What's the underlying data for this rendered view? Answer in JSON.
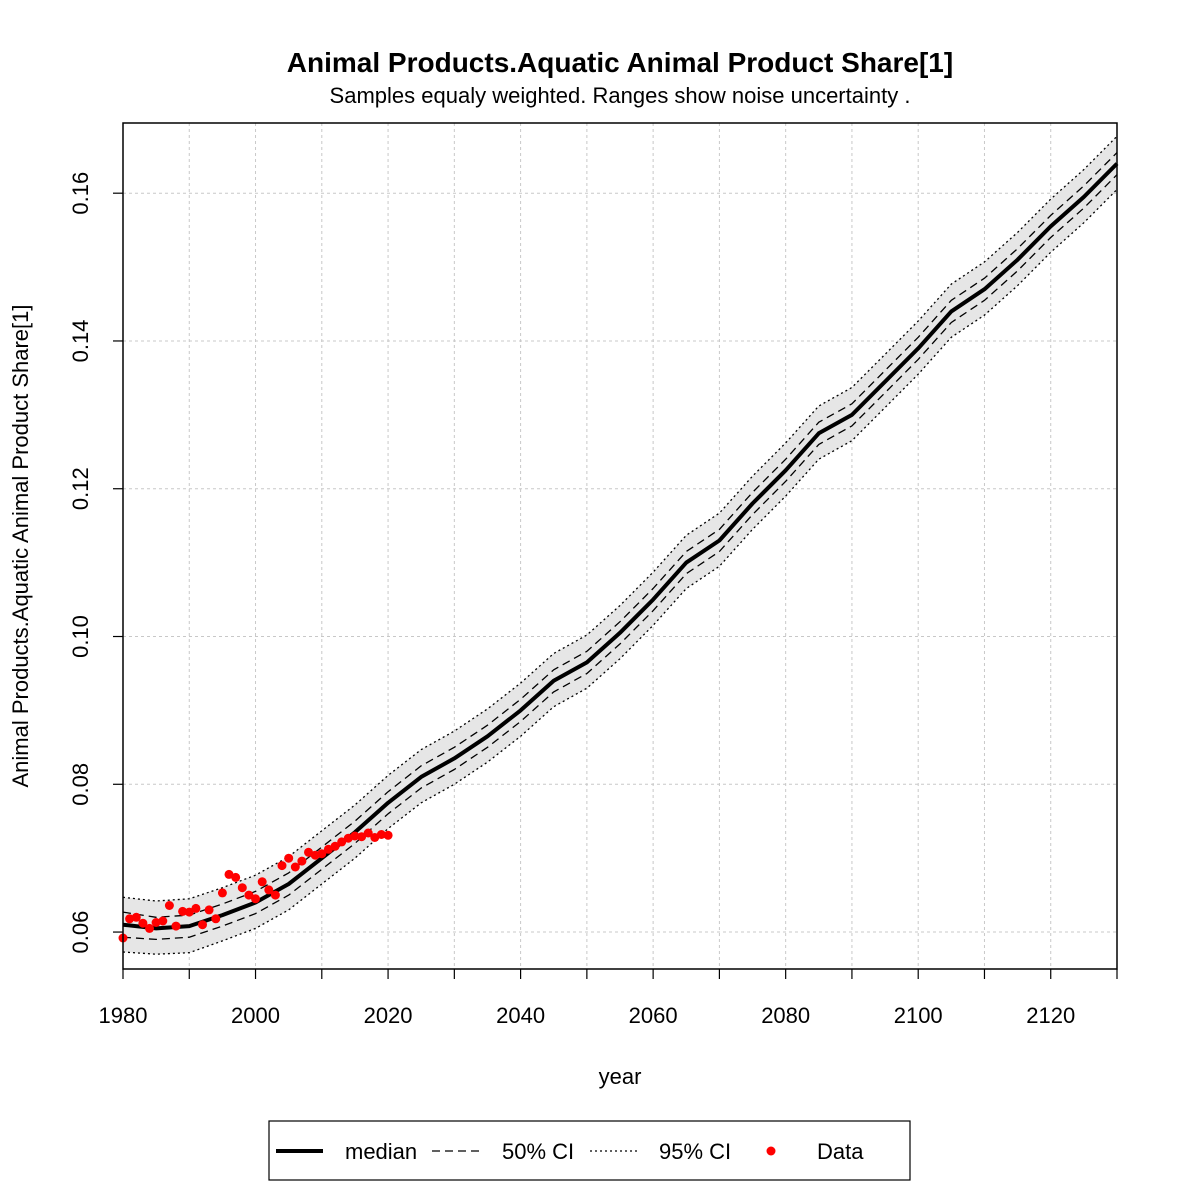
{
  "chart_data": {
    "type": "line",
    "title": "Animal Products.Aquatic Animal Product Share[1]",
    "subtitle": "Samples equaly weighted. Ranges show  noise uncertainty .",
    "xlabel": "year",
    "ylabel": "Animal Products.Aquatic Animal Product Share[1]",
    "xlim": [
      1980,
      2130
    ],
    "ylim": [
      0.055,
      0.1695
    ],
    "x_ticks": [
      1980,
      2000,
      2020,
      2040,
      2060,
      2080,
      2100,
      2120
    ],
    "x_tick_labels": [
      "1980",
      "2000",
      "2020",
      "2040",
      "2060",
      "2080",
      "2100",
      "2120"
    ],
    "x_minor_ticks": [
      1990,
      2010,
      2030,
      2050,
      2070,
      2090,
      2110,
      2130
    ],
    "y_ticks": [
      0.06,
      0.08,
      0.1,
      0.12,
      0.14,
      0.16
    ],
    "y_tick_labels": [
      "0.06",
      "0.08",
      "0.10",
      "0.12",
      "0.14",
      "0.16"
    ],
    "grid": true,
    "legend": {
      "placement": "bottom",
      "entries": [
        {
          "label": "median",
          "style": "solid"
        },
        {
          "label": "50% CI",
          "style": "dashed"
        },
        {
          "label": "95% CI",
          "style": "dotted"
        },
        {
          "label": "Data",
          "style": "point"
        }
      ]
    },
    "colors": {
      "median": "#000000",
      "band": "#e6e6e6",
      "data": "#ff0000",
      "grid": "#c8c8c8"
    },
    "x": [
      1980,
      1985,
      1990,
      1995,
      2000,
      2005,
      2010,
      2015,
      2020,
      2025,
      2030,
      2035,
      2040,
      2045,
      2050,
      2055,
      2060,
      2065,
      2070,
      2075,
      2080,
      2085,
      2090,
      2095,
      2100,
      2105,
      2110,
      2115,
      2120,
      2125,
      2130
    ],
    "series": [
      {
        "name": "median",
        "values": [
          0.061,
          0.0605,
          0.0608,
          0.0623,
          0.064,
          0.0665,
          0.07,
          0.0735,
          0.0775,
          0.081,
          0.0835,
          0.0865,
          0.09,
          0.094,
          0.0965,
          0.1005,
          0.105,
          0.11,
          0.113,
          0.118,
          0.1225,
          0.1275,
          0.13,
          0.1345,
          0.139,
          0.144,
          0.147,
          0.151,
          0.1555,
          0.1595,
          0.164
        ]
      },
      {
        "name": "50% CI",
        "values": [
          0.0593,
          0.059,
          0.0593,
          0.0608,
          0.0625,
          0.065,
          0.0685,
          0.072,
          0.076,
          0.0795,
          0.082,
          0.085,
          0.0885,
          0.0925,
          0.095,
          0.099,
          0.1035,
          0.1085,
          0.1115,
          0.1165,
          0.121,
          0.126,
          0.1285,
          0.133,
          0.1375,
          0.1425,
          0.1455,
          0.1495,
          0.154,
          0.158,
          0.1625
        ]
      },
      {
        "name": "50% CI upper",
        "values": [
          0.0627,
          0.062,
          0.0623,
          0.0638,
          0.0655,
          0.068,
          0.0715,
          0.075,
          0.079,
          0.0825,
          0.085,
          0.088,
          0.0915,
          0.0955,
          0.098,
          0.102,
          0.1065,
          0.1115,
          0.1145,
          0.1195,
          0.124,
          0.129,
          0.1315,
          0.136,
          0.1405,
          0.1455,
          0.1485,
          0.1525,
          0.157,
          0.161,
          0.1655
        ]
      },
      {
        "name": "95% CI",
        "values": [
          0.0573,
          0.057,
          0.0572,
          0.0588,
          0.0605,
          0.063,
          0.0665,
          0.07,
          0.074,
          0.0775,
          0.08,
          0.083,
          0.0865,
          0.0905,
          0.093,
          0.097,
          0.1015,
          0.1065,
          0.1095,
          0.1145,
          0.119,
          0.124,
          0.1265,
          0.131,
          0.1355,
          0.1405,
          0.1435,
          0.1475,
          0.152,
          0.156,
          0.1605
        ]
      },
      {
        "name": "95% CI upper",
        "values": [
          0.0647,
          0.0642,
          0.0645,
          0.066,
          0.0677,
          0.0702,
          0.0737,
          0.0772,
          0.0812,
          0.0847,
          0.0872,
          0.0902,
          0.0937,
          0.0977,
          0.1002,
          0.1042,
          0.1087,
          0.1137,
          0.1167,
          0.1217,
          0.1262,
          0.1312,
          0.1337,
          0.1382,
          0.1427,
          0.1477,
          0.1507,
          0.1547,
          0.1592,
          0.1632,
          0.1677
        ]
      }
    ],
    "points": {
      "name": "Data",
      "x": [
        1980,
        1981,
        1982,
        1983,
        1984,
        1985,
        1986,
        1987,
        1988,
        1989,
        1990,
        1991,
        1992,
        1993,
        1994,
        1995,
        1996,
        1997,
        1998,
        1999,
        2000,
        2001,
        2002,
        2003,
        2004,
        2005,
        2006,
        2007,
        2008,
        2009,
        2010,
        2011,
        2012,
        2013,
        2014,
        2015,
        2016,
        2017,
        2018,
        2019,
        2020
      ],
      "y": [
        0.0592,
        0.0618,
        0.062,
        0.0612,
        0.0605,
        0.0613,
        0.0615,
        0.0636,
        0.0608,
        0.0628,
        0.0627,
        0.0632,
        0.061,
        0.063,
        0.0618,
        0.0653,
        0.0678,
        0.0674,
        0.066,
        0.065,
        0.0645,
        0.0668,
        0.0657,
        0.065,
        0.069,
        0.07,
        0.0688,
        0.0696,
        0.0708,
        0.0704,
        0.0706,
        0.0712,
        0.0716,
        0.0722,
        0.0727,
        0.073,
        0.0729,
        0.0734,
        0.0728,
        0.0732,
        0.0731
      ]
    }
  }
}
